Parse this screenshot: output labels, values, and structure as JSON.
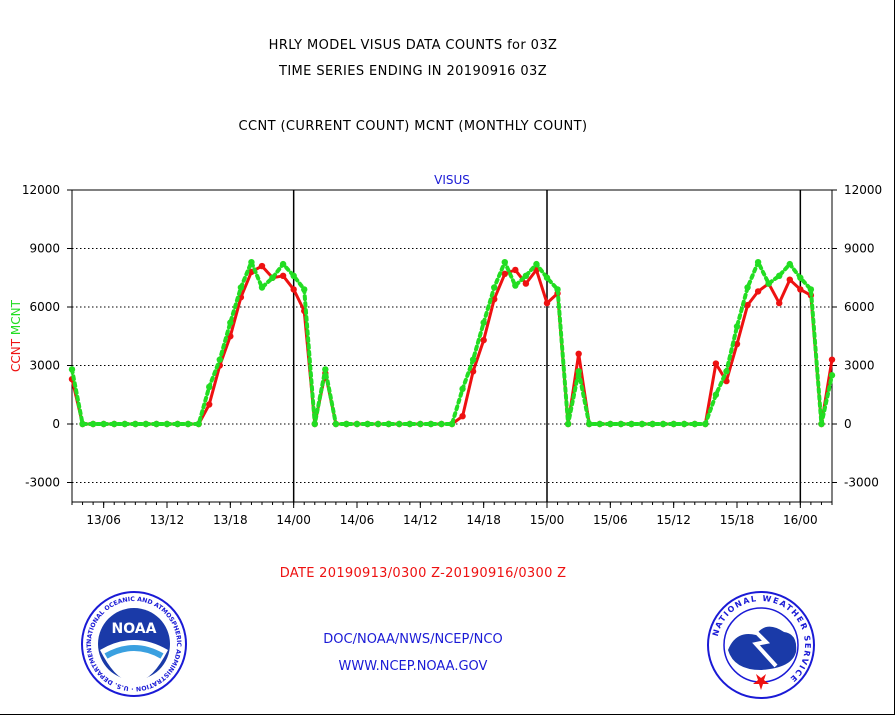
{
  "header": {
    "line1": "HRLY MODEL VISUS DATA COUNTS for 03Z",
    "line2": "TIME SERIES ENDING IN 20190916 03Z",
    "line3": "CCNT (CURRENT COUNT) MCNT (MONTHLY COUNT)"
  },
  "chart_data": {
    "type": "line",
    "title": "VISUS",
    "ylabel_left": [
      "CCNT",
      "MCNT"
    ],
    "ylim": [
      -4000,
      12000
    ],
    "yticks": [
      12000,
      9000,
      6000,
      3000,
      0,
      -3000
    ],
    "xticks": [
      "13/06",
      "13/12",
      "13/18",
      "14/00",
      "14/06",
      "14/12",
      "14/18",
      "15/00",
      "15/06",
      "15/12",
      "15/18",
      "16/00"
    ],
    "x_start": "2019091303",
    "x_end": "2019091603",
    "day_boundaries": [
      "14/00",
      "15/00",
      "16/00"
    ],
    "grid": "horizontal dotted",
    "colors": {
      "ccnt": "#ee1111",
      "mcnt": "#22dd22",
      "title": "#1a1ad6"
    },
    "series": [
      {
        "name": "CCNT",
        "values": [
          2300,
          0,
          0,
          0,
          0,
          0,
          0,
          0,
          0,
          0,
          0,
          0,
          0,
          1000,
          3000,
          4500,
          6500,
          7800,
          8100,
          7500,
          7600,
          6900,
          5800,
          0,
          2600,
          0,
          0,
          0,
          0,
          0,
          0,
          0,
          0,
          0,
          0,
          0,
          0,
          400,
          2700,
          4300,
          6400,
          7700,
          7900,
          7200,
          7900,
          6200,
          6700,
          0,
          3600,
          0,
          0,
          0,
          0,
          0,
          0,
          0,
          0,
          0,
          0,
          0,
          0,
          3100,
          2200,
          4100,
          6100,
          6800,
          7200,
          6200,
          7400,
          6900,
          6600,
          0,
          3300
        ]
      },
      {
        "name": "MCNT",
        "values": [
          2800,
          0,
          0,
          0,
          0,
          0,
          0,
          0,
          0,
          0,
          0,
          0,
          0,
          1900,
          3300,
          5200,
          7000,
          8300,
          7000,
          7500,
          8200,
          7600,
          6900,
          0,
          2800,
          0,
          0,
          0,
          0,
          0,
          0,
          0,
          0,
          0,
          0,
          0,
          0,
          1800,
          3300,
          5200,
          7000,
          8300,
          7100,
          7600,
          8200,
          7500,
          6900,
          0,
          2700,
          0,
          0,
          0,
          0,
          0,
          0,
          0,
          0,
          0,
          0,
          0,
          0,
          1500,
          2700,
          5000,
          7000,
          8300,
          7200,
          7600,
          8200,
          7500,
          6900,
          0,
          2500
        ]
      }
    ]
  },
  "date_range": "DATE 20190913/0300 Z-20190916/0300 Z",
  "footer": {
    "line1": "DOC/NOAA/NWS/NCEP/NCO",
    "line2": "WWW.NCEP.NOAA.GOV"
  },
  "logos": {
    "noaa_text": "NOAA",
    "noaa_ring": "NATIONAL OCEANIC AND ATMOSPHERIC ADMINISTRATION · U.S. DEPARTMENT OF COMMERCE ·",
    "nws_ring": "NATIONAL WEATHER SERVICE"
  }
}
